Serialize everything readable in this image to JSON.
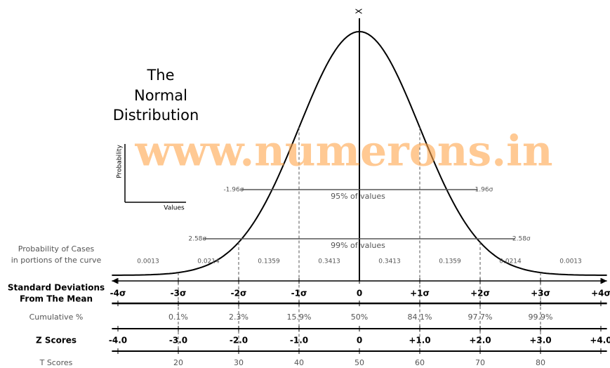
{
  "title": [
    "The",
    "Normal",
    "Distribution"
  ],
  "watermark": "www.numerons.in",
  "axis_label": "X",
  "inset": {
    "y_label": "Probability",
    "x_label": "Values"
  },
  "intervals": [
    {
      "left": "-1.96σ",
      "right": "1.96σ",
      "caption": "95% of values"
    },
    {
      "left": "2.58σ",
      "right": "2.58σ",
      "caption": "99% of values"
    }
  ],
  "rows": {
    "probability": {
      "label": [
        "Probability of Cases",
        "in portions of the curve"
      ],
      "values": [
        "0.0013",
        "0.0214",
        "0.1359",
        "0.3413",
        "0.3413",
        "0.1359",
        "0.0214",
        "0.0013"
      ]
    },
    "sd": {
      "label": [
        "Standard Deviations",
        "From The Mean"
      ],
      "values": [
        "-4σ",
        "-3σ",
        "-2σ",
        "-1σ",
        "0",
        "+1σ",
        "+2σ",
        "+3σ",
        "+4σ"
      ]
    },
    "cumulative": {
      "label": [
        "Cumulative %"
      ],
      "values": [
        "0.1%",
        "2.3%",
        "15.9%",
        "50%",
        "84.1%",
        "97.7%",
        "99.9%"
      ]
    },
    "z": {
      "label": [
        "Z Scores"
      ],
      "values": [
        "-4.0",
        "-3.0",
        "-2.0",
        "-1.0",
        "0",
        "+1.0",
        "+2.0",
        "+3.0",
        "+4.0"
      ]
    },
    "t": {
      "label": [
        "T Scores"
      ],
      "values": [
        "20",
        "30",
        "40",
        "50",
        "60",
        "70",
        "80"
      ]
    }
  }
}
